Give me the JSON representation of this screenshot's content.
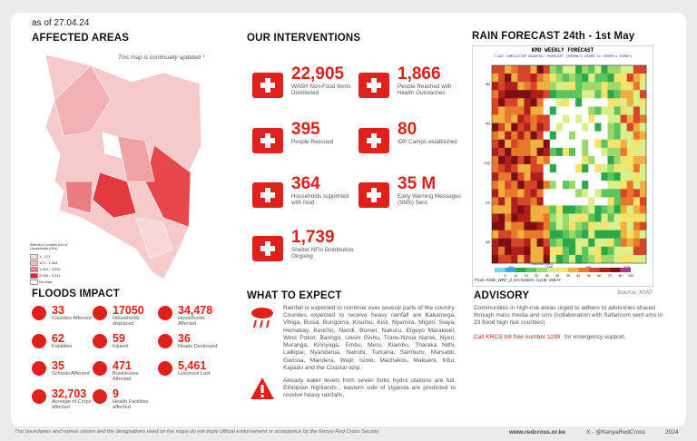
{
  "header": {
    "date": "as of 27.04.24"
  },
  "affected_areas": {
    "title": "AFFECTED AREAS",
    "note": "This map is continually updated *",
    "legend": {
      "title": "Affected Counties (No of Households (HH))",
      "items": [
        "1 - 122",
        "123 - 1,053",
        "1,054 - 3,094",
        "3,095 - 5,231",
        "No data"
      ]
    }
  },
  "interventions": {
    "title": "OUR INTERVENTIONS",
    "items": [
      {
        "value": "22,905",
        "label": "WASH Non-Food Items Distributed"
      },
      {
        "value": "1,866",
        "label": "People Reached with Health Outreaches"
      },
      {
        "value": "395",
        "label": "People Rescued"
      },
      {
        "value": "80",
        "label": "IDP Camps established"
      },
      {
        "value": "364",
        "label": "Households supported with food"
      },
      {
        "value": "35 M",
        "label": "Early Warning Messages (SMS) Sent."
      },
      {
        "value": "1,739",
        "label": "Shelter NFIs Distribution Ongoing"
      }
    ]
  },
  "rain_forecast": {
    "title": "RAIN FORECAST 24th - 1st May",
    "map_title": "KMD WEEKLY FORECAST",
    "map_subtitle": "7 DAY CUMULATIVE RAINFALL FORECAST [0000Hrs 24APR to 0000Hrs 01MAY]",
    "lon_labels": [
      "36E",
      "38E",
      "40E",
      "42E"
    ],
    "lat_labels": [
      "4N",
      "2N",
      "EQ",
      "2S",
      "4S"
    ],
    "scale_label": "Rainfall (mm)",
    "scale": [
      5,
      10,
      15,
      20,
      25,
      30,
      35,
      40,
      50,
      60,
      70,
      80,
      100
    ],
    "footer": "From: KMD_WRF_d_DA System: Cycle: 15EAT",
    "source": "Source: KMD"
  },
  "floods_impact": {
    "title": "FLOODS IMPACT",
    "items": [
      {
        "value": "33",
        "label": "Counties Affected"
      },
      {
        "value": "17050",
        "label": "Households displaced"
      },
      {
        "value": "34,478",
        "label": "Households Affected"
      },
      {
        "value": "62",
        "label": "Fatalities"
      },
      {
        "value": "59",
        "label": "Injured"
      },
      {
        "value": "36",
        "label": "Roads Destroyed"
      },
      {
        "value": "35",
        "label": "Schools Affected"
      },
      {
        "value": "471",
        "label": "Businesses Affected"
      },
      {
        "value": "5,461",
        "label": "Livestock Lost"
      },
      {
        "value": "32,703",
        "label": "Acreage of Crops affected"
      },
      {
        "value": "9",
        "label": "Health Facilities affected"
      }
    ]
  },
  "what_to_expect": {
    "title": "WHAT TO EXPECT",
    "paragraphs": [
      "Rainfall is expected to continue over several parts of the country. Counties expected to receive heavy rainfall are Kakamega, Vihiga, Busia, Bungoma, Kisumu, Kisii, Nyamira, Migori, Siaya, Homabay, Kericho, Nandi, Bomet, Nakuru, Elgeyo Marakwet, West Pokot, Baringo, Uasin Gishu, Trans-Nzoia Narok, Nyeri, Muranga, Kirinyaga, Embu, Meru, Kiambu, Tharaka Nithi, Laikipia, Nyandarua, Nairobi, Turkana, Samburu, Marsabit, Garissa, Mandera, Wajir, Isiolo, Machakos, Makueni, Kitui, Kajiado and the Coastal strip.",
      "Already water levels from seven forks hydro stations are full. Ethiopian highlands , eastern side of Uganda are predicted to receive heavy rainfalls."
    ]
  },
  "advisory": {
    "title": "ADVISORY",
    "text": "Communities in high-risk areas urged to adhere to advisories shared through mass media and sms (collaboration with Safaricom sent sms in 23 flood high risk counties).",
    "call": "Call KRCS toll free number 1199",
    "call_suffix": "for emergency support."
  },
  "footer": {
    "disclaimer": "The boundaries and names shown and the designations used on the maps do not imply official endorsement or acceptance by the Kenya Red Cross Society.",
    "website": "www.redcross.or.ke",
    "social": "X - @KenyaRedCross",
    "year": "2024"
  }
}
